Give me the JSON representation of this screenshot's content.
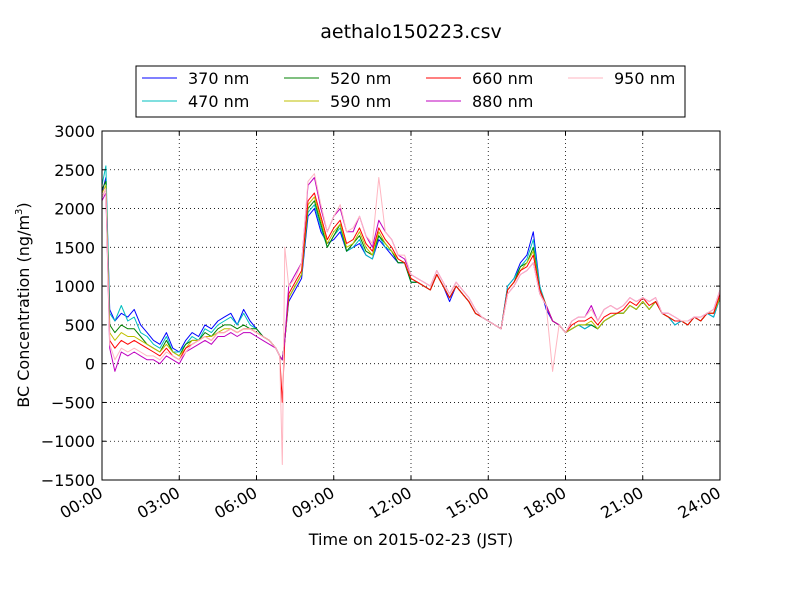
{
  "chart_data": {
    "type": "line",
    "title": "aethalo150223.csv",
    "xlabel": "Time on 2015-02-23 (JST)",
    "ylabel": "BC Concentration (ng/m",
    "ylabel_sup": "3",
    "ylabel_close": ")",
    "xlim": [
      0,
      24
    ],
    "ylim": [
      -1500,
      3000
    ],
    "x_ticks": [
      0,
      3,
      6,
      9,
      12,
      15,
      18,
      21,
      24
    ],
    "x_tick_labels": [
      "00:00",
      "03:00",
      "06:00",
      "09:00",
      "12:00",
      "15:00",
      "18:00",
      "21:00",
      "24:00"
    ],
    "y_ticks": [
      -1500,
      -1000,
      -500,
      0,
      500,
      1000,
      1500,
      2000,
      2500,
      3000
    ],
    "y_tick_labels": [
      "−1500",
      "−1000",
      "−500",
      "0",
      "500",
      "1000",
      "1500",
      "2000",
      "2500",
      "3000"
    ],
    "grid": true,
    "legend_position": "top",
    "x": [
      0.0,
      0.15,
      0.3,
      0.5,
      0.75,
      1.0,
      1.25,
      1.5,
      1.75,
      2.0,
      2.25,
      2.5,
      2.75,
      3.0,
      3.25,
      3.5,
      3.75,
      4.0,
      4.25,
      4.5,
      4.75,
      5.0,
      5.25,
      5.5,
      5.75,
      6.0,
      6.25,
      6.5,
      6.75,
      6.9,
      7.0,
      7.1,
      7.25,
      7.5,
      7.75,
      8.0,
      8.25,
      8.5,
      8.75,
      9.0,
      9.25,
      9.5,
      9.75,
      10.0,
      10.25,
      10.5,
      10.75,
      11.0,
      11.25,
      11.5,
      11.75,
      12.0,
      12.25,
      12.5,
      12.75,
      13.0,
      13.25,
      13.5,
      13.75,
      14.0,
      14.25,
      14.5,
      14.75,
      15.0,
      15.25,
      15.5,
      15.75,
      16.0,
      16.25,
      16.5,
      16.75,
      17.0,
      17.25,
      17.5,
      17.75,
      18.0,
      18.25,
      18.5,
      18.75,
      19.0,
      19.25,
      19.5,
      19.75,
      20.0,
      20.25,
      20.5,
      20.75,
      21.0,
      21.25,
      21.5,
      21.75,
      22.0,
      22.25,
      22.5,
      22.75,
      23.0,
      23.25,
      23.5,
      23.75,
      24.0
    ],
    "series": [
      {
        "name": "370 nm",
        "color": "#0000ff",
        "values": [
          2200,
          2400,
          700,
          550,
          650,
          600,
          700,
          500,
          400,
          300,
          250,
          400,
          200,
          150,
          300,
          400,
          350,
          500,
          450,
          550,
          600,
          650,
          500,
          700,
          550,
          450,
          350,
          300,
          200,
          100,
          50,
          300,
          800,
          950,
          1100,
          1900,
          2000,
          1700,
          1550,
          1600,
          1700,
          1450,
          1500,
          1550,
          1400,
          1350,
          1600,
          1500,
          1400,
          1300,
          1300,
          1050,
          1050,
          1000,
          950,
          1150,
          1000,
          800,
          1000,
          900,
          800,
          650,
          600,
          550,
          500,
          450,
          1000,
          1100,
          1300,
          1400,
          1700,
          1000,
          700,
          550,
          500,
          400,
          450,
          500,
          450,
          500,
          450,
          550,
          600,
          650,
          650,
          750,
          700,
          800,
          700,
          800,
          650,
          600,
          500,
          550,
          500,
          600,
          550,
          650,
          600,
          850
        ]
      },
      {
        "name": "470 nm",
        "color": "#00bfbf",
        "values": [
          2300,
          2550,
          650,
          550,
          750,
          550,
          600,
          400,
          350,
          250,
          200,
          350,
          150,
          150,
          250,
          350,
          300,
          450,
          400,
          500,
          550,
          600,
          500,
          650,
          500,
          450,
          350,
          300,
          200,
          100,
          50,
          300,
          850,
          1000,
          1150,
          1950,
          2050,
          1750,
          1500,
          1650,
          1750,
          1450,
          1500,
          1600,
          1400,
          1350,
          1650,
          1500,
          1450,
          1300,
          1300,
          1050,
          1050,
          1000,
          950,
          1150,
          1000,
          850,
          1000,
          900,
          800,
          650,
          600,
          550,
          500,
          450,
          1000,
          1100,
          1250,
          1350,
          1600,
          1000,
          750,
          550,
          500,
          400,
          450,
          500,
          450,
          500,
          450,
          550,
          600,
          650,
          650,
          750,
          700,
          800,
          700,
          800,
          650,
          600,
          500,
          550,
          500,
          600,
          550,
          650,
          600,
          850
        ]
      },
      {
        "name": "520 nm",
        "color": "#008000",
        "values": [
          2250,
          2350,
          500,
          400,
          500,
          450,
          450,
          350,
          250,
          200,
          150,
          300,
          150,
          100,
          250,
          300,
          300,
          400,
          350,
          450,
          500,
          500,
          450,
          500,
          450,
          450,
          350,
          300,
          200,
          100,
          50,
          300,
          850,
          1000,
          1150,
          2000,
          2100,
          1800,
          1500,
          1650,
          1800,
          1450,
          1550,
          1650,
          1450,
          1400,
          1650,
          1550,
          1450,
          1300,
          1300,
          1050,
          1050,
          1000,
          950,
          1150,
          1000,
          850,
          1000,
          900,
          800,
          650,
          600,
          550,
          500,
          450,
          950,
          1050,
          1250,
          1300,
          1500,
          950,
          750,
          550,
          500,
          400,
          450,
          500,
          500,
          500,
          450,
          550,
          600,
          650,
          650,
          750,
          700,
          800,
          700,
          800,
          650,
          600,
          550,
          550,
          500,
          600,
          550,
          650,
          650,
          850
        ]
      },
      {
        "name": "590 nm",
        "color": "#bfbf00",
        "values": [
          2200,
          2300,
          400,
          300,
          400,
          350,
          350,
          300,
          250,
          200,
          150,
          250,
          150,
          100,
          200,
          300,
          300,
          350,
          350,
          400,
          450,
          450,
          400,
          450,
          450,
          400,
          350,
          300,
          200,
          100,
          50,
          300,
          850,
          1000,
          1150,
          2050,
          2150,
          1850,
          1550,
          1700,
          1800,
          1500,
          1550,
          1700,
          1500,
          1400,
          1700,
          1550,
          1450,
          1350,
          1300,
          1100,
          1050,
          1000,
          950,
          1150,
          1000,
          850,
          1000,
          900,
          800,
          650,
          600,
          550,
          500,
          450,
          950,
          1050,
          1200,
          1300,
          1450,
          950,
          750,
          550,
          500,
          400,
          450,
          500,
          500,
          550,
          450,
          550,
          600,
          650,
          650,
          750,
          700,
          800,
          700,
          800,
          650,
          600,
          550,
          550,
          500,
          600,
          550,
          650,
          650,
          850
        ]
      },
      {
        "name": "660 nm",
        "color": "#ff0000",
        "values": [
          2150,
          2250,
          300,
          200,
          300,
          250,
          300,
          250,
          200,
          150,
          100,
          200,
          100,
          50,
          200,
          250,
          300,
          350,
          300,
          400,
          400,
          450,
          400,
          450,
          450,
          400,
          350,
          300,
          200,
          100,
          -500,
          300,
          900,
          1050,
          1200,
          2100,
          2200,
          1900,
          1600,
          1750,
          1850,
          1550,
          1600,
          1750,
          1550,
          1450,
          1750,
          1600,
          1500,
          1350,
          1300,
          1100,
          1050,
          1000,
          950,
          1150,
          1000,
          850,
          1000,
          900,
          800,
          650,
          600,
          550,
          500,
          450,
          950,
          1050,
          1200,
          1250,
          1400,
          950,
          750,
          550,
          500,
          400,
          500,
          550,
          550,
          600,
          500,
          600,
          650,
          650,
          700,
          800,
          750,
          850,
          750,
          800,
          650,
          600,
          550,
          550,
          500,
          600,
          550,
          650,
          650,
          900
        ]
      },
      {
        "name": "880 nm",
        "color": "#bf00bf",
        "values": [
          2100,
          2200,
          200,
          -100,
          150,
          100,
          150,
          100,
          50,
          50,
          0,
          100,
          50,
          0,
          150,
          200,
          250,
          300,
          250,
          350,
          350,
          400,
          350,
          400,
          400,
          350,
          300,
          250,
          200,
          100,
          50,
          300,
          1000,
          1150,
          1300,
          2300,
          2400,
          2000,
          1700,
          1900,
          2000,
          1700,
          1700,
          1900,
          1650,
          1500,
          1850,
          1700,
          1600,
          1400,
          1350,
          1150,
          1100,
          1050,
          1000,
          1200,
          1050,
          900,
          1050,
          950,
          850,
          700,
          600,
          550,
          500,
          450,
          900,
          1000,
          1150,
          1200,
          1300,
          900,
          750,
          550,
          500,
          400,
          550,
          600,
          600,
          750,
          550,
          700,
          750,
          700,
          750,
          850,
          800,
          850,
          800,
          850,
          650,
          650,
          600,
          550,
          550,
          600,
          600,
          650,
          700,
          950
        ]
      },
      {
        "name": "950 nm",
        "color": "#ffb6c1",
        "values": [
          2150,
          2250,
          250,
          50,
          200,
          150,
          200,
          150,
          100,
          100,
          50,
          150,
          100,
          50,
          150,
          250,
          300,
          350,
          300,
          400,
          400,
          450,
          400,
          450,
          450,
          400,
          350,
          300,
          200,
          100,
          -1300,
          1500,
          1000,
          1100,
          1300,
          2350,
          2450,
          2050,
          1700,
          1900,
          2050,
          1700,
          1750,
          1900,
          1650,
          1550,
          2400,
          1700,
          1600,
          1400,
          1400,
          1150,
          1100,
          1050,
          1000,
          1200,
          1050,
          900,
          1050,
          950,
          850,
          700,
          600,
          550,
          500,
          450,
          900,
          1000,
          1150,
          1200,
          1300,
          900,
          750,
          -100,
          500,
          400,
          550,
          600,
          600,
          700,
          550,
          700,
          750,
          700,
          750,
          850,
          800,
          850,
          800,
          850,
          650,
          650,
          600,
          550,
          550,
          600,
          600,
          650,
          700,
          950
        ]
      }
    ]
  }
}
